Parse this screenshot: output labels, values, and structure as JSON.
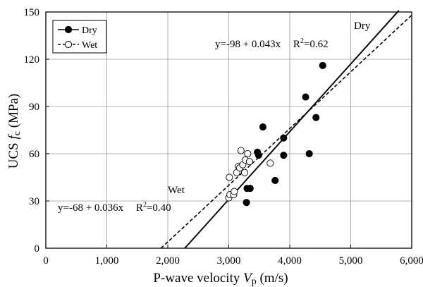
{
  "chart_data": {
    "type": "scatter",
    "xlabel": "P-wave velocity Vp (m/s)",
    "xlabel_parts": {
      "main": "P-wave velocity ",
      "var": "V",
      "sub": "p",
      "unit": " (m/s)"
    },
    "ylabel": "UCS fc (MPa)",
    "ylabel_parts": {
      "main": "UCS ",
      "var": "f",
      "sub": "c",
      "unit": " (MPa)"
    },
    "xlim": [
      0,
      6000
    ],
    "ylim": [
      0,
      150
    ],
    "x_ticks": [
      0,
      1000,
      2000,
      3000,
      4000,
      5000,
      6000
    ],
    "x_tick_labels": [
      "0",
      "1,000",
      "2,000",
      "3,000",
      "4,000",
      "5,000",
      "6,000"
    ],
    "y_ticks": [
      0,
      30,
      60,
      90,
      120,
      150
    ],
    "y_tick_labels": [
      "0",
      "30",
      "60",
      "90",
      "120",
      "150"
    ],
    "grid": true,
    "legend_position": "top-left",
    "series": [
      {
        "name": "Dry",
        "marker": "filled-circle",
        "line_style": "solid",
        "color": "#000000",
        "points": [
          [
            3290,
            29
          ],
          [
            3300,
            38
          ],
          [
            3350,
            38
          ],
          [
            3470,
            61
          ],
          [
            3490,
            59
          ],
          [
            3560,
            77
          ],
          [
            3760,
            43
          ],
          [
            3900,
            70
          ],
          [
            3900,
            59
          ],
          [
            4260,
            96
          ],
          [
            4320,
            60
          ],
          [
            4430,
            83
          ],
          [
            4540,
            116
          ]
        ],
        "fit": {
          "intercept": -98,
          "slope": 0.043,
          "x_range": [
            2279,
            5789
          ]
        }
      },
      {
        "name": "Wet",
        "marker": "open-circle",
        "line_style": "dashed",
        "color": "#000000",
        "points": [
          [
            3000,
            32
          ],
          [
            3020,
            34
          ],
          [
            3010,
            45
          ],
          [
            3080,
            34
          ],
          [
            3090,
            36
          ],
          [
            3130,
            48
          ],
          [
            3160,
            52
          ],
          [
            3180,
            51
          ],
          [
            3200,
            62
          ],
          [
            3230,
            53
          ],
          [
            3260,
            48
          ],
          [
            3270,
            56
          ],
          [
            3310,
            60
          ],
          [
            3340,
            55
          ],
          [
            3680,
            54
          ]
        ],
        "fit": {
          "intercept": -68,
          "slope": 0.036,
          "x_range": [
            1889,
            6000
          ]
        }
      }
    ],
    "annotations": {
      "dry_label": "Dry",
      "dry_equation": "y=-98 + 0.043x",
      "dry_r2_prefix": "R",
      "dry_r2_sup": "2",
      "dry_r2_value": "=0.62",
      "wet_label": "Wet",
      "wet_equation": "y=-68 + 0.036x",
      "wet_r2_prefix": "R",
      "wet_r2_sup": "2",
      "wet_r2_value": "=0.40"
    }
  }
}
